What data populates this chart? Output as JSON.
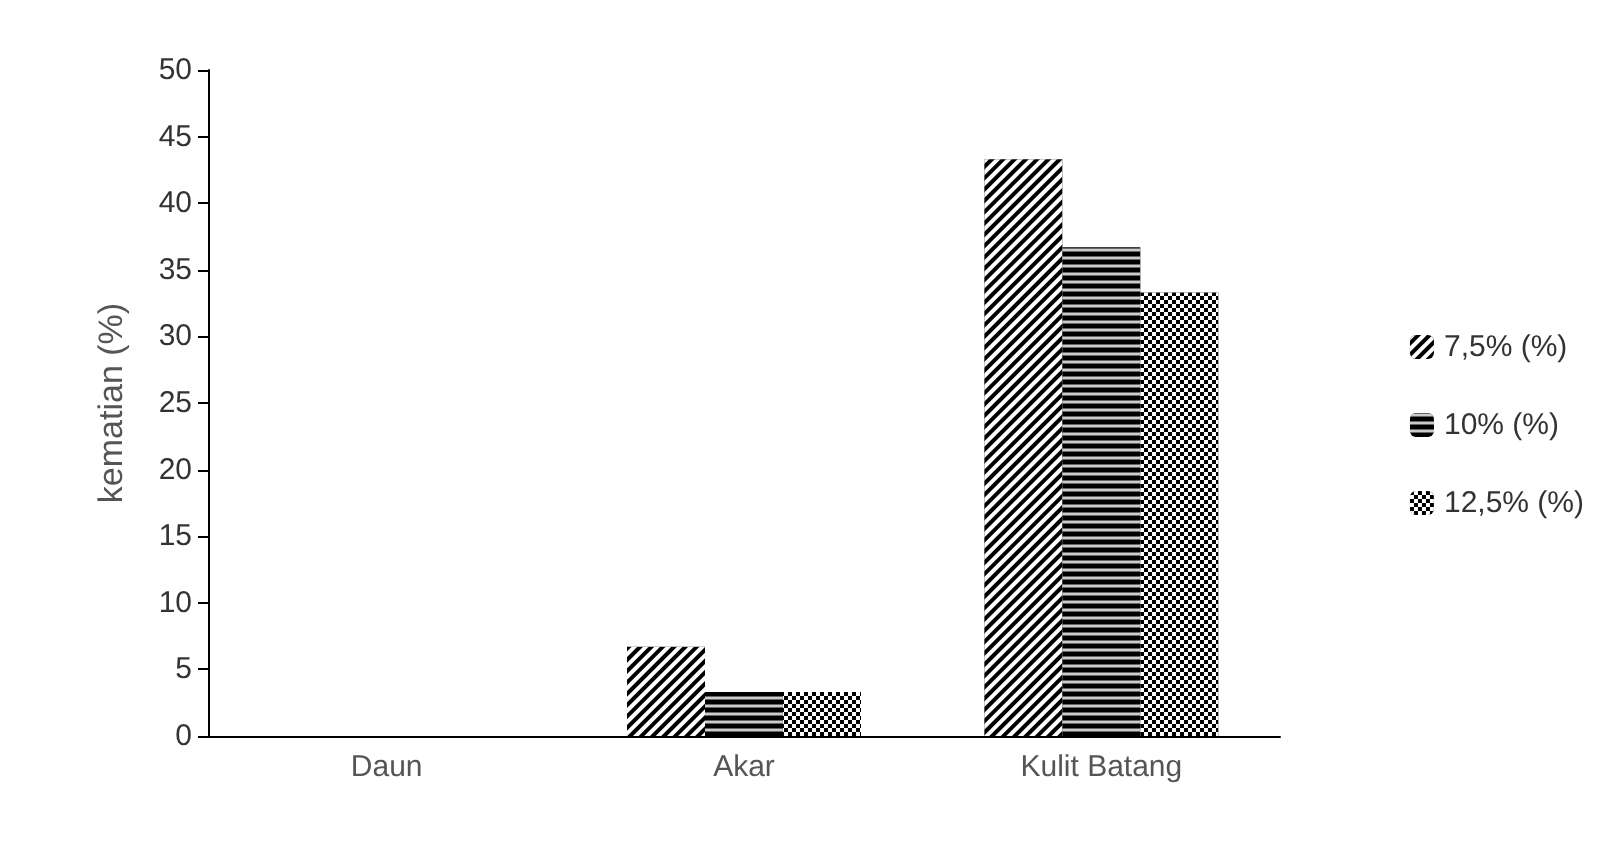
{
  "chart_data": {
    "type": "bar",
    "ylabel": "kematian (%)",
    "categories": [
      "Daun",
      "Akar",
      "Kulit Batang"
    ],
    "series": [
      {
        "name": "7,5% (%)",
        "color": "#000000",
        "values": [
          0,
          6.7,
          43.3
        ]
      },
      {
        "name": "10% (%)",
        "color": "#000000",
        "values": [
          0,
          3.3,
          36.7
        ]
      },
      {
        "name": "12,5% (%)",
        "color": "#000000",
        "values": [
          0,
          3.3,
          33.3
        ]
      }
    ],
    "ylim": [
      0,
      50
    ],
    "yticks": [
      0,
      5,
      10,
      15,
      20,
      25,
      30,
      35,
      40,
      45,
      50
    ],
    "grid": false,
    "legend": "right"
  }
}
